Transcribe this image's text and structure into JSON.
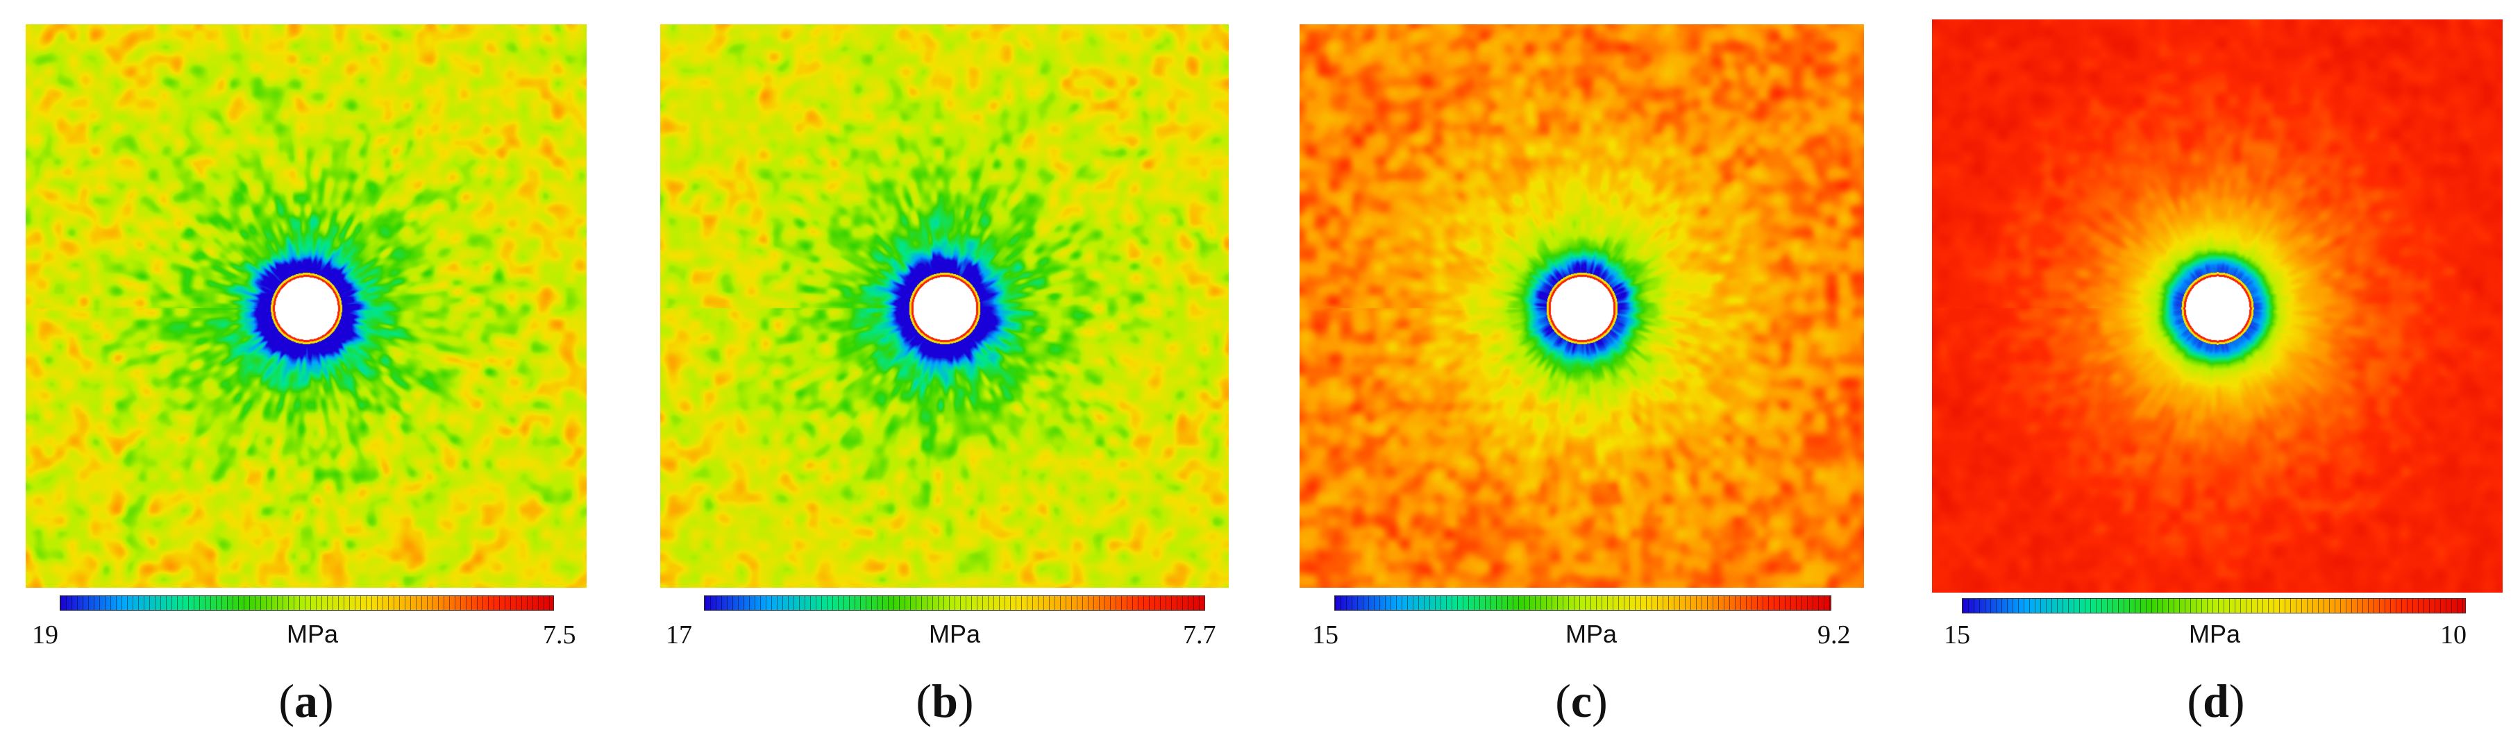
{
  "panels": [
    {
      "letter": "a",
      "paren_open": "(",
      "paren_close": ")",
      "colorbar": {
        "min_label": "19",
        "max_label": "7.5",
        "unit": "MPa"
      },
      "field": {
        "background": "yellow-green",
        "noise": "high"
      }
    },
    {
      "letter": "b",
      "paren_open": "(",
      "paren_close": ")",
      "colorbar": {
        "min_label": "17",
        "max_label": "7.7",
        "unit": "MPa"
      },
      "field": {
        "background": "yellow-green",
        "noise": "high"
      }
    },
    {
      "letter": "c",
      "paren_open": "(",
      "paren_close": ")",
      "colorbar": {
        "min_label": "15",
        "max_label": "9.2",
        "unit": "MPa"
      },
      "field": {
        "background": "orange",
        "noise": "medium"
      }
    },
    {
      "letter": "d",
      "paren_open": "(",
      "paren_close": ")",
      "colorbar": {
        "min_label": "15",
        "max_label": "10",
        "unit": "MPa"
      },
      "field": {
        "background": "red-orange",
        "noise": "low"
      }
    }
  ],
  "colors": {
    "colormap": [
      "#1a00d8",
      "#00a6ff",
      "#00e68a",
      "#34d400",
      "#b9f000",
      "#f6e000",
      "#ff9a00",
      "#ff2b00",
      "#e00000"
    ],
    "hole": "#ffffff"
  }
}
